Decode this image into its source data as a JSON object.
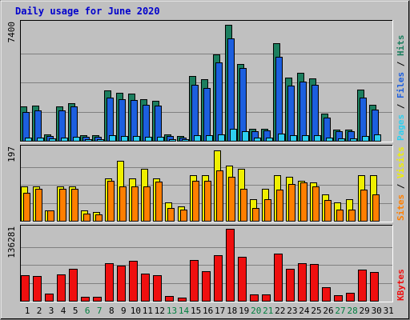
{
  "chart_data": {
    "type": "bar",
    "title": "Daily usage for June 2020",
    "title_color": "#0000CC",
    "background_color": "#C0C0C0",
    "x_categories": [
      "1",
      "2",
      "3",
      "4",
      "5",
      "6",
      "7",
      "8",
      "9",
      "10",
      "11",
      "12",
      "13",
      "14",
      "15",
      "16",
      "17",
      "18",
      "19",
      "20",
      "21",
      "22",
      "23",
      "24",
      "25",
      "26",
      "27",
      "28",
      "29",
      "30",
      "31"
    ],
    "weekend_days": [
      "6",
      "7",
      "13",
      "14",
      "20",
      "21",
      "27",
      "28"
    ],
    "weekday_label_color": "#000000",
    "weekend_label_color": "#007F3F",
    "panels": [
      {
        "id": "pages-files-hits",
        "max_label": "7400",
        "ylim": [
          0,
          7400
        ],
        "series": [
          {
            "name": "Hits",
            "color": "#1C7F5F",
            "values": [
              2200,
              2220,
              420,
              2180,
              2400,
              330,
              340,
              3170,
              3050,
              3000,
              2620,
              2540,
              420,
              300,
              4100,
              3900,
              5450,
              7350,
              4850,
              740,
              780,
              6200,
              4000,
              4300,
              3970,
              1740,
              690,
              690,
              3250,
              2290,
              0
            ]
          },
          {
            "name": "Files",
            "color": "#1C5FDF",
            "values": [
              1840,
              1950,
              310,
              1910,
              2180,
              230,
              240,
              2750,
              2620,
              2580,
              2280,
              2220,
              320,
              220,
              3560,
              3360,
              4980,
              6480,
              4600,
              630,
              650,
              5330,
              3490,
              3770,
              3560,
              1470,
              590,
              590,
              2760,
              1980,
              0
            ]
          },
          {
            "name": "Pages",
            "color": "#2ECFEF",
            "values": [
              200,
              220,
              150,
              200,
              230,
              110,
              110,
              330,
              320,
              310,
              270,
              260,
              120,
              100,
              370,
              370,
              420,
              770,
              610,
              180,
              190,
              440,
              350,
              370,
              360,
              220,
              170,
              160,
              320,
              410,
              0
            ]
          }
        ],
        "legend_label_colors": {
          "Pages": "#2ECFEF",
          "Files": "#1C5FDF",
          "Hits": "#1C7F5F"
        }
      },
      {
        "id": "sites-visits",
        "max_label": "197",
        "ylim": [
          0,
          197
        ],
        "series": [
          {
            "name": "Visits",
            "color": "#EFEF00",
            "values": [
              95,
              95,
              28,
              95,
              95,
              28,
              24,
              115,
              165,
              115,
              142,
              115,
              50,
              40,
              125,
              125,
              193,
              150,
              142,
              60,
              88,
              125,
              120,
              110,
              105,
              72,
              50,
              60,
              125,
              125,
              0
            ]
          },
          {
            "name": "Sites",
            "color": "#FF7F00",
            "values": [
              77,
              87,
              28,
              87,
              87,
              20,
              18,
              110,
              95,
              95,
              95,
              107,
              35,
              30,
              110,
              110,
              137,
              120,
              87,
              35,
              60,
              85,
              100,
              105,
              95,
              56,
              30,
              30,
              85,
              72,
              0
            ]
          }
        ],
        "legend_label_colors": {
          "Sites": "#FF7F00",
          "Visits": "#EFEF00"
        }
      },
      {
        "id": "kbytes",
        "max_label": "136281",
        "ylim": [
          0,
          136281
        ],
        "series": [
          {
            "name": "KBytes",
            "color": "#EF0F0F",
            "values": [
              49000,
              47000,
              13000,
              50000,
              61000,
              8000,
              8000,
              71000,
              67000,
              76000,
              51000,
              49000,
              9000,
              6000,
              77000,
              56000,
              87000,
              136000,
              84000,
              12000,
              12000,
              90000,
              61000,
              71000,
              69000,
              25000,
              10000,
              15000,
              59000,
              55000,
              0
            ]
          }
        ],
        "legend_label_colors": {
          "KBytes": "#EF0F0F"
        }
      }
    ]
  }
}
